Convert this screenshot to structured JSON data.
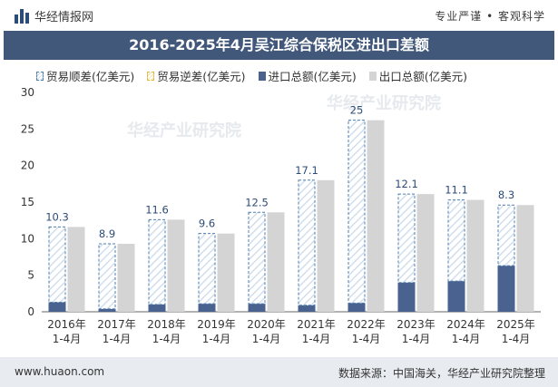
{
  "header": {
    "brand": "华经情报网",
    "tagline": "专业严谨 • 客观科学"
  },
  "chart_data": {
    "type": "bar",
    "title": "2016-2025年4月吴江综合保税区进出口差额",
    "categories": [
      "2016年\n1-4月",
      "2017年\n1-4月",
      "2018年\n1-4月",
      "2019年\n1-4月",
      "2020年\n1-4月",
      "2021年\n1-4月",
      "2022年\n1-4月",
      "2023年\n1-4月",
      "2024年\n1-4月",
      "2025年\n1-4月"
    ],
    "series": [
      {
        "name": "贸易顺差(亿美元)",
        "values": [
          10.3,
          8.9,
          11.6,
          9.6,
          12.5,
          17.1,
          25,
          12.1,
          11.1,
          8.3
        ]
      },
      {
        "name": "贸易逆差(亿美元)",
        "values": [
          0,
          0,
          0,
          0,
          0,
          0,
          0,
          0,
          0,
          0
        ]
      },
      {
        "name": "进口总额(亿美元)",
        "values": [
          1.3,
          0.4,
          1.0,
          1.1,
          1.1,
          0.9,
          1.2,
          4.0,
          4.2,
          6.3
        ]
      },
      {
        "name": "出口总额(亿美元)",
        "values": [
          11.6,
          9.3,
          12.6,
          10.7,
          13.6,
          18.0,
          26.2,
          16.1,
          15.3,
          14.6
        ]
      }
    ],
    "ylim": [
      0,
      30
    ],
    "yticks": [
      0,
      5,
      10,
      15,
      20,
      25,
      30
    ],
    "xlabel": "",
    "ylabel": "",
    "colors": {
      "surplus_border": "#4f7fb0",
      "surplus_hatch": "#c9d9ea",
      "deficit_border": "#e0b840",
      "import": "#4a6290",
      "export": "#d4d4d4",
      "label": "#2c4c78"
    }
  },
  "watermark": "华经产业研究院",
  "footer": {
    "url": "www.huaon.com",
    "source": "数据来源：中国海关，华经产业研究院整理"
  }
}
